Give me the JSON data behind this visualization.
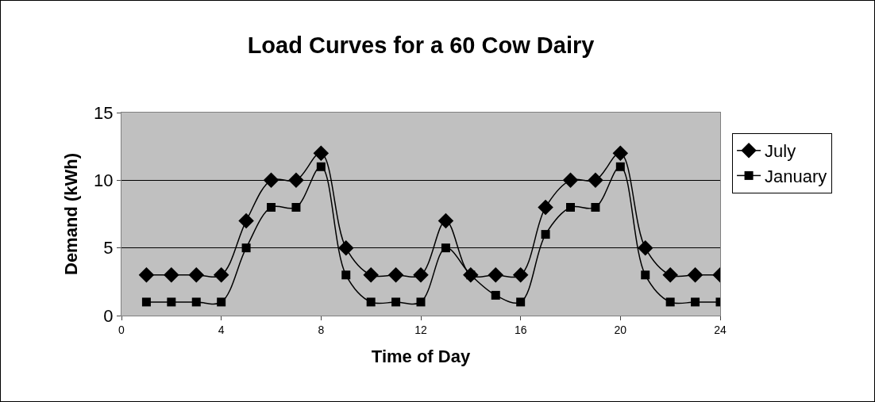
{
  "chart_data": {
    "type": "line",
    "title": "Load Curves for a 60 Cow Dairy",
    "xlabel": "Time of Day",
    "ylabel": "Demand (kWh)",
    "x": [
      1,
      2,
      3,
      4,
      5,
      6,
      7,
      8,
      9,
      10,
      11,
      12,
      13,
      14,
      15,
      16,
      17,
      18,
      19,
      20,
      21,
      22,
      23,
      24
    ],
    "series": [
      {
        "name": "July",
        "color": "#000000",
        "marker": "diamond",
        "values": [
          3,
          3,
          3,
          3,
          7,
          10,
          10,
          12,
          5,
          3,
          3,
          3,
          7,
          3,
          3,
          3,
          8,
          10,
          10,
          12,
          5,
          3,
          3,
          3
        ]
      },
      {
        "name": "January",
        "color": "#000000",
        "marker": "square",
        "values": [
          1,
          1,
          1,
          1,
          5,
          8,
          8,
          11,
          3,
          1,
          1,
          1,
          5,
          3,
          1.5,
          1,
          6,
          8,
          8,
          11,
          3,
          1,
          1,
          1
        ]
      }
    ],
    "xlim": [
      0,
      24
    ],
    "xticks": [
      0,
      4,
      8,
      12,
      16,
      20,
      24
    ],
    "ylim": [
      0,
      15
    ],
    "yticks": [
      0,
      5,
      10,
      15
    ],
    "grid": "y",
    "legend": "right",
    "line_style": "solid"
  }
}
